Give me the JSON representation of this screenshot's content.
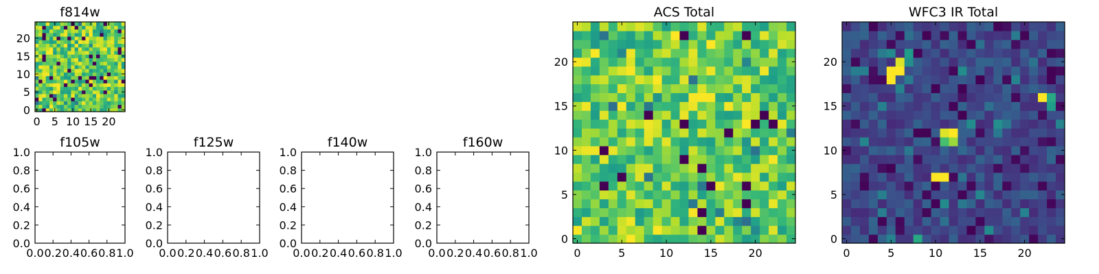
{
  "chart_data": [
    {
      "type": "heatmap",
      "title": "f814w",
      "x_ticks": [
        "0",
        "5",
        "10",
        "15",
        "20"
      ],
      "y_ticks": [
        "0",
        "5",
        "10",
        "15",
        "20"
      ],
      "xlim": [
        -0.5,
        24.5
      ],
      "ylim": [
        -0.5,
        24.5
      ],
      "grid_size": 25,
      "colormap": "viridis",
      "z_range": [
        0,
        1
      ],
      "seed": 814,
      "description_of_values": "25x25 per-pixel values, mostly high (green-yellow) with a few low (dark purple) pixels"
    },
    {
      "type": "scatter",
      "title": "f105w",
      "x_ticks": [
        "0.0",
        "0.2",
        "0.4",
        "0.6",
        "0.8",
        "1.0"
      ],
      "y_ticks": [
        "0.0",
        "0.2",
        "0.4",
        "0.6",
        "0.8",
        "1.0"
      ],
      "xlim": [
        0,
        1
      ],
      "ylim": [
        0,
        1
      ],
      "series": []
    },
    {
      "type": "scatter",
      "title": "f125w",
      "x_ticks": [
        "0.0",
        "0.2",
        "0.4",
        "0.6",
        "0.8",
        "1.0"
      ],
      "y_ticks": [
        "0.0",
        "0.2",
        "0.4",
        "0.6",
        "0.8",
        "1.0"
      ],
      "xlim": [
        0,
        1
      ],
      "ylim": [
        0,
        1
      ],
      "series": []
    },
    {
      "type": "scatter",
      "title": "f140w",
      "x_ticks": [
        "0.0",
        "0.2",
        "0.4",
        "0.6",
        "0.8",
        "1.0"
      ],
      "y_ticks": [
        "0.0",
        "0.2",
        "0.4",
        "0.6",
        "0.8",
        "1.0"
      ],
      "xlim": [
        0,
        1
      ],
      "ylim": [
        0,
        1
      ],
      "series": []
    },
    {
      "type": "scatter",
      "title": "f160w",
      "x_ticks": [
        "0.0",
        "0.2",
        "0.4",
        "0.6",
        "0.8",
        "1.0"
      ],
      "y_ticks": [
        "0.0",
        "0.2",
        "0.4",
        "0.6",
        "0.8",
        "1.0"
      ],
      "xlim": [
        0,
        1
      ],
      "ylim": [
        0,
        1
      ],
      "series": []
    },
    {
      "type": "heatmap",
      "title": "ACS Total",
      "x_ticks": [
        "0",
        "5",
        "10",
        "15",
        "20"
      ],
      "y_ticks": [
        "0",
        "5",
        "10",
        "15",
        "20"
      ],
      "xlim": [
        -0.5,
        24.5
      ],
      "ylim": [
        -0.5,
        24.5
      ],
      "grid_size": 25,
      "colormap": "viridis",
      "z_range": [
        0,
        1
      ],
      "seed": 4242,
      "description_of_values": "25x25 per-pixel values, mostly high (green-yellow) with scattered low (dark purple) pixels"
    },
    {
      "type": "heatmap",
      "title": "WFC3 IR Total",
      "x_ticks": [
        "0",
        "5",
        "10",
        "15",
        "20"
      ],
      "y_ticks": [
        "0",
        "5",
        "10",
        "15",
        "20"
      ],
      "xlim": [
        -0.5,
        24.5
      ],
      "ylim": [
        -0.5,
        24.5
      ],
      "grid_size": 25,
      "colormap": "viridis",
      "z_range": [
        0,
        1
      ],
      "seed": 3160,
      "hotspots": [
        {
          "x": 5,
          "y": 18,
          "value": 1.0
        },
        {
          "x": 5,
          "y": 19,
          "value": 1.0
        },
        {
          "x": 6,
          "y": 19,
          "value": 1.0
        },
        {
          "x": 6,
          "y": 20,
          "value": 0.95
        },
        {
          "x": 7,
          "y": 21,
          "value": 0.55
        },
        {
          "x": 7,
          "y": 20,
          "value": 0.5
        },
        {
          "x": 11,
          "y": 12,
          "value": 0.95
        },
        {
          "x": 12,
          "y": 12,
          "value": 1.0
        },
        {
          "x": 12,
          "y": 11,
          "value": 0.85
        },
        {
          "x": 11,
          "y": 11,
          "value": 0.7
        },
        {
          "x": 10,
          "y": 7,
          "value": 1.0
        },
        {
          "x": 11,
          "y": 7,
          "value": 1.0
        },
        {
          "x": 22,
          "y": 16,
          "value": 1.0
        },
        {
          "x": 23,
          "y": 16,
          "value": 0.6
        },
        {
          "x": 23,
          "y": 15,
          "value": 0.55
        },
        {
          "x": 8,
          "y": 0,
          "value": 0.6
        },
        {
          "x": 18,
          "y": 13,
          "value": 0.4
        }
      ],
      "description_of_values": "25x25 per-pixel values, mostly low (dark blue-purple) with a few bright (yellow) hotspots"
    }
  ]
}
